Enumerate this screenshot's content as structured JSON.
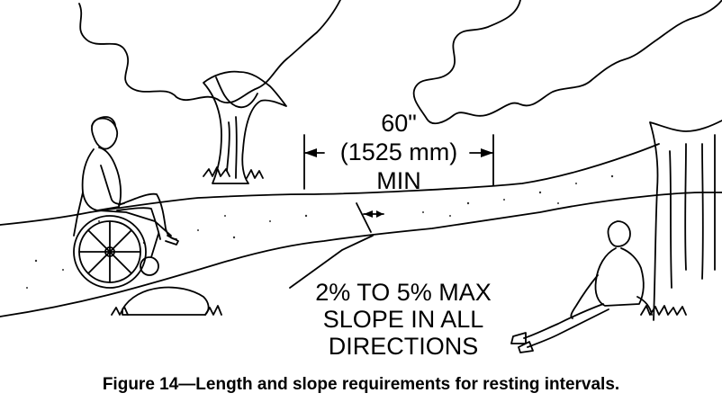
{
  "dimension": {
    "line1": "60\"",
    "line2": "(1525 mm)",
    "line3": "MIN"
  },
  "slope_note": {
    "line1": "2% TO 5% MAX",
    "line2": "SLOPE IN ALL",
    "line3": "DIRECTIONS"
  },
  "caption": "Figure 14—Length and slope requirements for resting intervals."
}
